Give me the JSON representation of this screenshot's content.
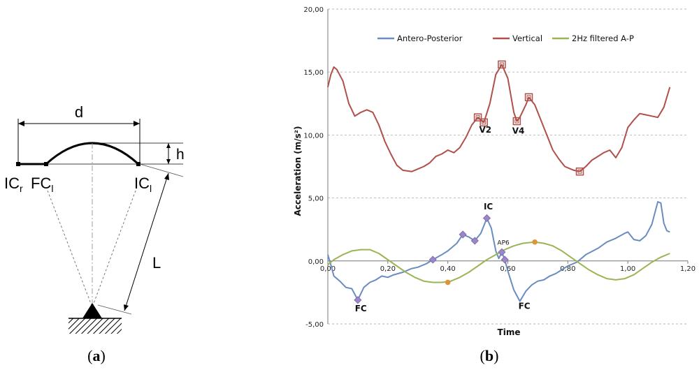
{
  "panel_a": {
    "label_open": "(",
    "label_letter": "a",
    "label_close": ")",
    "d": "d",
    "h": "h",
    "L": "L",
    "L_sub": "",
    "ic_r": "IC",
    "ic_r_sub": "r",
    "fc_l": "FC",
    "fc_l_sub": "l",
    "ic_l": "IC",
    "ic_l_sub": "l"
  },
  "panel_b": {
    "label_open": "(",
    "label_letter": "b",
    "label_close": ")"
  },
  "colors": {
    "ap": "#6b8cc0",
    "vertical": "#b0504b",
    "filtered": "#9bb454",
    "event_marker": "#9a86c8",
    "filtered_marker": "#e0943a",
    "grid": "#b5b5b5"
  },
  "chart_data": {
    "type": "line",
    "title": "",
    "xlabel": "Time",
    "ylabel": "Acceleration (m/s²)",
    "xlim": [
      0,
      1.2
    ],
    "ylim": [
      -5,
      20
    ],
    "x_ticks": [
      "0,00",
      "0,20",
      "0,40",
      "0,60",
      "0,80",
      "1,00",
      "1,20"
    ],
    "y_ticks": [
      "-5,00",
      "0,00",
      "5,00",
      "10,00",
      "15,00",
      "20,00"
    ],
    "grid": "horizontal dashed",
    "legend_position": "top",
    "series": [
      {
        "name": "Antero-Posterior",
        "color_key": "ap",
        "points": [
          [
            0,
            0.5
          ],
          [
            0.01,
            -0.3
          ],
          [
            0.02,
            -1.2
          ],
          [
            0.04,
            -1.6
          ],
          [
            0.06,
            -2.1
          ],
          [
            0.08,
            -2.2
          ],
          [
            0.1,
            -3.1
          ],
          [
            0.12,
            -2.1
          ],
          [
            0.14,
            -1.7
          ],
          [
            0.16,
            -1.5
          ],
          [
            0.18,
            -1.2
          ],
          [
            0.2,
            -1.3
          ],
          [
            0.22,
            -1.1
          ],
          [
            0.25,
            -0.9
          ],
          [
            0.28,
            -0.6
          ],
          [
            0.3,
            -0.5
          ],
          [
            0.33,
            -0.2
          ],
          [
            0.35,
            0.1
          ],
          [
            0.38,
            0.5
          ],
          [
            0.4,
            0.8
          ],
          [
            0.43,
            1.4
          ],
          [
            0.45,
            2.1
          ],
          [
            0.47,
            1.9
          ],
          [
            0.49,
            1.6
          ],
          [
            0.51,
            2.2
          ],
          [
            0.53,
            3.4
          ],
          [
            0.545,
            2.6
          ],
          [
            0.56,
            0.8
          ],
          [
            0.57,
            0.2
          ],
          [
            0.58,
            0.7
          ],
          [
            0.59,
            0.1
          ],
          [
            0.6,
            -0.8
          ],
          [
            0.62,
            -2.3
          ],
          [
            0.64,
            -3.2
          ],
          [
            0.66,
            -2.4
          ],
          [
            0.68,
            -1.9
          ],
          [
            0.7,
            -1.6
          ],
          [
            0.72,
            -1.5
          ],
          [
            0.74,
            -1.2
          ],
          [
            0.76,
            -1.0
          ],
          [
            0.78,
            -0.7
          ],
          [
            0.8,
            -0.4
          ],
          [
            0.83,
            -0.1
          ],
          [
            0.86,
            0.5
          ],
          [
            0.9,
            1.0
          ],
          [
            0.93,
            1.5
          ],
          [
            0.96,
            1.8
          ],
          [
            0.99,
            2.2
          ],
          [
            1.0,
            2.3
          ],
          [
            1.02,
            1.7
          ],
          [
            1.04,
            1.6
          ],
          [
            1.06,
            2.0
          ],
          [
            1.08,
            2.9
          ],
          [
            1.1,
            4.7
          ],
          [
            1.11,
            4.6
          ],
          [
            1.12,
            3.0
          ],
          [
            1.13,
            2.4
          ],
          [
            1.14,
            2.3
          ]
        ],
        "event_markers": [
          [
            0.1,
            -3.1
          ],
          [
            0.35,
            0.1
          ],
          [
            0.45,
            2.1
          ],
          [
            0.49,
            1.6
          ],
          [
            0.53,
            3.4
          ],
          [
            0.58,
            0.7
          ],
          [
            0.59,
            0.1
          ]
        ]
      },
      {
        "name": "Vertical",
        "color_key": "vertical",
        "points": [
          [
            0,
            13.8
          ],
          [
            0.01,
            14.8
          ],
          [
            0.02,
            15.4
          ],
          [
            0.03,
            15.2
          ],
          [
            0.05,
            14.3
          ],
          [
            0.07,
            12.5
          ],
          [
            0.09,
            11.5
          ],
          [
            0.11,
            11.8
          ],
          [
            0.13,
            12.0
          ],
          [
            0.15,
            11.8
          ],
          [
            0.17,
            10.8
          ],
          [
            0.19,
            9.5
          ],
          [
            0.21,
            8.5
          ],
          [
            0.23,
            7.6
          ],
          [
            0.25,
            7.2
          ],
          [
            0.28,
            7.1
          ],
          [
            0.3,
            7.3
          ],
          [
            0.32,
            7.5
          ],
          [
            0.34,
            7.8
          ],
          [
            0.36,
            8.3
          ],
          [
            0.38,
            8.5
          ],
          [
            0.4,
            8.8
          ],
          [
            0.42,
            8.6
          ],
          [
            0.44,
            9.0
          ],
          [
            0.46,
            9.8
          ],
          [
            0.48,
            10.8
          ],
          [
            0.5,
            11.4
          ],
          [
            0.52,
            11.0
          ],
          [
            0.54,
            12.5
          ],
          [
            0.56,
            14.8
          ],
          [
            0.58,
            15.6
          ],
          [
            0.6,
            14.5
          ],
          [
            0.62,
            11.8
          ],
          [
            0.63,
            11.1
          ],
          [
            0.64,
            11.4
          ],
          [
            0.66,
            12.4
          ],
          [
            0.67,
            13.0
          ],
          [
            0.69,
            12.4
          ],
          [
            0.71,
            11.2
          ],
          [
            0.73,
            10.0
          ],
          [
            0.75,
            8.8
          ],
          [
            0.77,
            8.1
          ],
          [
            0.79,
            7.5
          ],
          [
            0.82,
            7.2
          ],
          [
            0.84,
            7.1
          ],
          [
            0.86,
            7.5
          ],
          [
            0.88,
            8.0
          ],
          [
            0.9,
            8.3
          ],
          [
            0.92,
            8.6
          ],
          [
            0.94,
            8.8
          ],
          [
            0.96,
            8.2
          ],
          [
            0.98,
            9.0
          ],
          [
            1.0,
            10.6
          ],
          [
            1.02,
            11.2
          ],
          [
            1.04,
            11.7
          ],
          [
            1.06,
            11.6
          ],
          [
            1.08,
            11.5
          ],
          [
            1.1,
            11.4
          ],
          [
            1.12,
            12.2
          ],
          [
            1.14,
            13.8
          ]
        ],
        "event_markers": [
          [
            0.5,
            11.4
          ],
          [
            0.52,
            11.0
          ],
          [
            0.58,
            15.6
          ],
          [
            0.63,
            11.1
          ],
          [
            0.67,
            13.0
          ],
          [
            0.84,
            7.1
          ]
        ]
      },
      {
        "name": "2Hz filtered A-P",
        "color_key": "filtered",
        "points": [
          [
            0,
            -0.3
          ],
          [
            0.02,
            0.1
          ],
          [
            0.05,
            0.5
          ],
          [
            0.08,
            0.8
          ],
          [
            0.11,
            0.9
          ],
          [
            0.14,
            0.9
          ],
          [
            0.17,
            0.6
          ],
          [
            0.2,
            0.1
          ],
          [
            0.23,
            -0.4
          ],
          [
            0.26,
            -0.9
          ],
          [
            0.29,
            -1.3
          ],
          [
            0.32,
            -1.6
          ],
          [
            0.35,
            -1.7
          ],
          [
            0.38,
            -1.7
          ],
          [
            0.41,
            -1.6
          ],
          [
            0.44,
            -1.3
          ],
          [
            0.47,
            -0.9
          ],
          [
            0.5,
            -0.4
          ],
          [
            0.53,
            0.1
          ],
          [
            0.56,
            0.5
          ],
          [
            0.59,
            0.9
          ],
          [
            0.62,
            1.2
          ],
          [
            0.65,
            1.4
          ],
          [
            0.69,
            1.5
          ],
          [
            0.72,
            1.4
          ],
          [
            0.75,
            1.2
          ],
          [
            0.78,
            0.8
          ],
          [
            0.81,
            0.3
          ],
          [
            0.84,
            -0.2
          ],
          [
            0.87,
            -0.7
          ],
          [
            0.9,
            -1.1
          ],
          [
            0.93,
            -1.4
          ],
          [
            0.96,
            -1.5
          ],
          [
            0.99,
            -1.4
          ],
          [
            1.02,
            -1.1
          ],
          [
            1.05,
            -0.6
          ],
          [
            1.08,
            -0.1
          ],
          [
            1.11,
            0.3
          ],
          [
            1.14,
            0.6
          ]
        ],
        "event_markers": [
          [
            0.4,
            -1.7
          ],
          [
            0.69,
            1.5
          ]
        ]
      }
    ],
    "annotations": [
      {
        "text": "FC",
        "x": 0.11,
        "y": -4.0,
        "style": "bold"
      },
      {
        "text": "IC",
        "x": 0.535,
        "y": 4.1,
        "style": "bold"
      },
      {
        "text": "AP6",
        "x": 0.585,
        "y": 1.3,
        "style": "small"
      },
      {
        "text": "FC",
        "x": 0.655,
        "y": -3.8,
        "style": "bold"
      },
      {
        "text": "V2",
        "x": 0.525,
        "y": 10.2,
        "style": "bold"
      },
      {
        "text": "V4",
        "x": 0.635,
        "y": 10.1,
        "style": "bold"
      }
    ]
  }
}
